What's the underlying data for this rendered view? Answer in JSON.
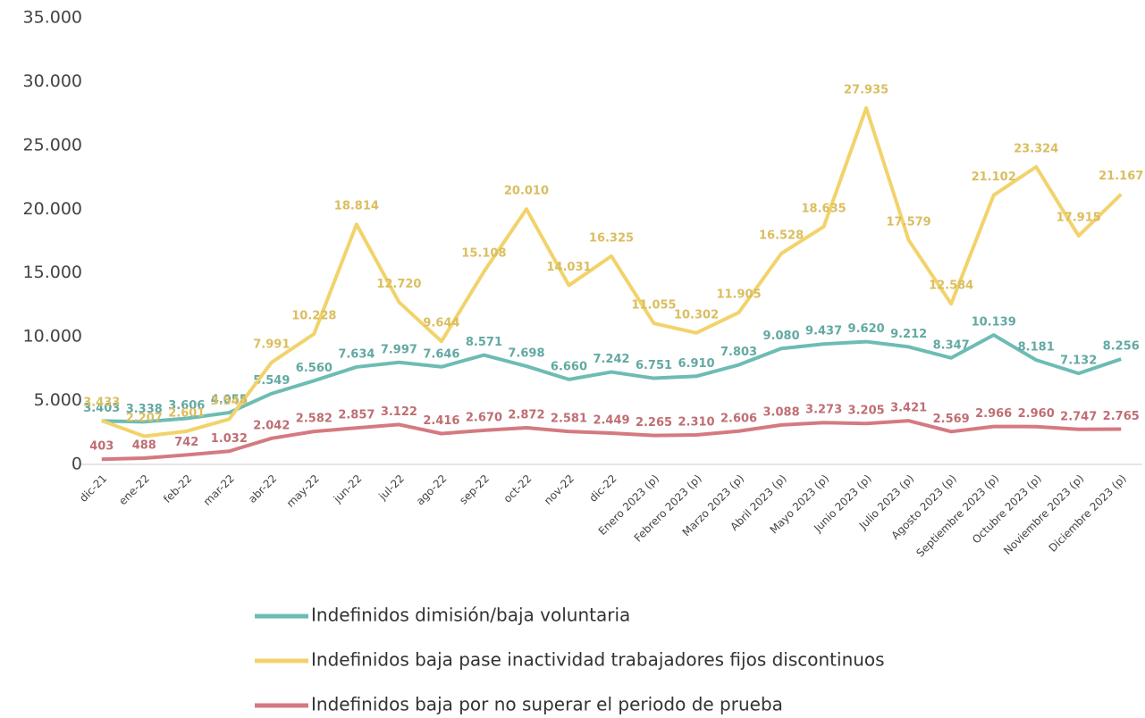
{
  "chart_data": {
    "type": "line",
    "categories": [
      "dic-21",
      "ene-22",
      "feb-22",
      "mar-22",
      "abr-22",
      "may-22",
      "jun-22",
      "jul-22",
      "ago-22",
      "sep-22",
      "oct-22",
      "nov-22",
      "dic-22",
      "Enero 2023 (p)",
      "Febrero 2023 (p)",
      "Marzo 2023 (p)",
      "Abril 2023 (p)",
      "Mayo 2023 (p)",
      "Junio 2023 (p)",
      "Julio 2023 (p)",
      "Agosto 2023 (p)",
      "Septiembre 2023 (p)",
      "Octubre 2023 (p)",
      "Noviembre 2023 (p)",
      "Diciembre 2023 (p)"
    ],
    "series": [
      {
        "name": "Indefinidos dimisión/baja voluntaria",
        "color": "#6dbcb4",
        "values": [
          3403,
          3338,
          3606,
          4055,
          5549,
          6560,
          7634,
          7997,
          7646,
          8571,
          7698,
          6660,
          7242,
          6751,
          6910,
          7803,
          9080,
          9437,
          9620,
          9212,
          8347,
          10139,
          8181,
          7132,
          8256
        ],
        "value_labels": [
          "3.403",
          "3.338",
          "3.606",
          "4.055",
          "5.549",
          "6.560",
          "7.634",
          "7.997",
          "7.646",
          "8.571",
          "7.698",
          "6.660",
          "7.242",
          "6.751",
          "6.910",
          "7.803",
          "9.080",
          "9.437",
          "9.620",
          "9.212",
          "8.347",
          "10.139",
          "8.181",
          "7.132",
          "8.256"
        ]
      },
      {
        "name": "Indefinidos baja pase inactividad trabajadores fijos discontinuos",
        "color": "#f2d36b",
        "values": [
          3433,
          2207,
          2601,
          3544,
          7991,
          10228,
          18814,
          12720,
          9644,
          15108,
          20010,
          14031,
          16325,
          11055,
          10302,
          11905,
          16528,
          18635,
          27935,
          17579,
          12584,
          21102,
          23324,
          17915,
          21167
        ],
        "value_labels": [
          "3.433",
          "2.207",
          "2.601",
          "3.544",
          "7.991",
          "10.228",
          "18.814",
          "12.720",
          "9.644",
          "15.108",
          "20.010",
          "14.031",
          "16.325",
          "11.055",
          "10.302",
          "11.905",
          "16.528",
          "18.635",
          "27.935",
          "17.579",
          "12.584",
          "21.102",
          "23.324",
          "17.915",
          "21.167"
        ]
      },
      {
        "name": "Indefinidos baja por no superar el periodo de prueba",
        "color": "#d47a80",
        "values": [
          403,
          488,
          742,
          1032,
          2042,
          2582,
          2857,
          3122,
          2416,
          2670,
          2872,
          2581,
          2449,
          2265,
          2310,
          2606,
          3088,
          3273,
          3205,
          3421,
          2569,
          2966,
          2960,
          2747,
          2765
        ],
        "value_labels": [
          "403",
          "488",
          "742",
          "1.032",
          "2.042",
          "2.582",
          "2.857",
          "3.122",
          "2.416",
          "2.670",
          "2.872",
          "2.581",
          "2.449",
          "2.265",
          "2.310",
          "2.606",
          "3.088",
          "3.273",
          "3.205",
          "3.421",
          "2.569",
          "2.966",
          "2.960",
          "2.747",
          "2.765"
        ]
      }
    ],
    "ylim": [
      0,
      35000
    ],
    "yticks": [
      0,
      {
        "value": 5000,
        "label": "5.000"
      },
      {
        "value": 10000,
        "label": "10.000"
      },
      {
        "value": 15000,
        "label": "15.000"
      },
      {
        "value": 20000,
        "label": "20.000"
      },
      {
        "value": 25000,
        "label": "25.000"
      },
      {
        "value": 30000,
        "label": "30.000"
      },
      {
        "value": 35000,
        "label": "35.000"
      }
    ],
    "grid": false,
    "legend": "bottom"
  }
}
